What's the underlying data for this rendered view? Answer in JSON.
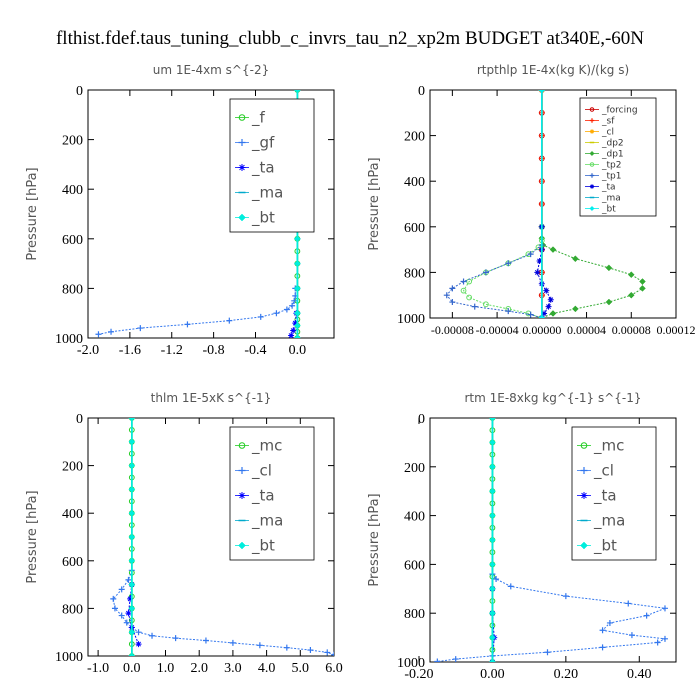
{
  "title": "flthist.fdef.taus_tuning_clubb_c_invrs_tau_n2_xp2m  BUDGET at340E,-60N",
  "chart_data": [
    {
      "type": "line",
      "title": "um   1E-4xm  s^{-2}",
      "ylabel": "Pressure [hPa]",
      "xlim": [
        -2.0,
        0.35
      ],
      "ylim": [
        1000,
        0
      ],
      "xticks": [
        "-2.0",
        "-1.6",
        "-1.2",
        "-0.8",
        "-0.4",
        "0.0"
      ],
      "xtick_values": [
        -2.0,
        -1.6,
        -1.2,
        -0.8,
        -0.4,
        0.0
      ],
      "yticks": [
        "0",
        "200",
        "400",
        "600",
        "800",
        "1000"
      ],
      "legend": [
        "_f",
        "_gf",
        "_ta",
        "_ma",
        "_bt"
      ],
      "legend_position": "top-right",
      "legend_small": false,
      "series": [
        {
          "name": "_f",
          "color": "#22cc22",
          "x": [
            0.0,
            0.0,
            0.0,
            0.0,
            0.0,
            0.0,
            0.0,
            0.0,
            0.0,
            0.0,
            0.0,
            0.0,
            0.0,
            0.0,
            0.0,
            0.0,
            0.0,
            0.0,
            0.0,
            0.0,
            0.0,
            0.0,
            0.0
          ],
          "y": [
            0,
            50,
            100,
            150,
            200,
            250,
            300,
            350,
            400,
            450,
            500,
            550,
            600,
            650,
            700,
            750,
            800,
            850,
            900,
            925,
            950,
            975,
            1000
          ]
        },
        {
          "name": "_gf",
          "color": "#3377ee",
          "x": [
            -0.02,
            -0.02,
            -0.03,
            -0.05,
            -0.1,
            -0.2,
            -0.35,
            -0.65,
            -1.05,
            -1.5,
            -1.78,
            -1.9
          ],
          "y": [
            800,
            830,
            850,
            870,
            885,
            900,
            915,
            930,
            945,
            960,
            975,
            985
          ]
        },
        {
          "name": "_ta",
          "color": "#0000ff",
          "x": [
            -0.01,
            -0.02,
            -0.04,
            -0.06
          ],
          "y": [
            900,
            940,
            970,
            990
          ]
        },
        {
          "name": "_ma",
          "color": "#00aacc",
          "x": [
            0.0,
            0.0,
            0.0,
            0.0,
            0.0,
            0.0,
            0.0,
            0.0,
            0.0,
            0.0,
            0.0
          ],
          "y": [
            0,
            100,
            200,
            300,
            400,
            500,
            600,
            700,
            800,
            900,
            1000
          ]
        },
        {
          "name": "_bt",
          "color": "#00eedd",
          "x": [
            0.0,
            0.0,
            0.0,
            0.0,
            0.0,
            0.0,
            0.0,
            0.0,
            0.0,
            0.0,
            0.0,
            0.0
          ],
          "y": [
            0,
            100,
            200,
            300,
            400,
            500,
            600,
            700,
            800,
            900,
            950,
            1000
          ]
        }
      ]
    },
    {
      "type": "line",
      "title": "rtpthlp   1E-4x(kg K)/(kg s)",
      "ylabel": "Pressure [hPa]",
      "xlim": [
        -0.0001,
        0.00012
      ],
      "ylim": [
        1000,
        0
      ],
      "xticks": [
        "-0.00008",
        "-0.00004",
        "0.00000",
        "0.00004",
        "0.00008",
        "0.00012"
      ],
      "xtick_values": [
        -8e-05,
        -4e-05,
        0.0,
        4e-05,
        8e-05,
        0.00012
      ],
      "yticks": [
        "0",
        "200",
        "400",
        "600",
        "800",
        "1000"
      ],
      "legend": [
        "_forcing",
        "_sf",
        "_cl",
        "_dp2",
        "_dp1",
        "_tp2",
        "_tp1",
        "_ta",
        "_ma",
        "_bt"
      ],
      "legend_position": "top-right",
      "legend_small": true,
      "series": [
        {
          "name": "_forcing",
          "color": "#cc0000",
          "x": [
            0.0,
            0.0,
            0.0,
            0.0,
            0.0,
            0.0,
            0.0,
            0.0,
            0.0,
            0.0,
            0.0
          ],
          "y": [
            0,
            100,
            200,
            300,
            400,
            500,
            600,
            700,
            800,
            900,
            1000
          ]
        },
        {
          "name": "_sf",
          "color": "#ff2200",
          "x": [
            0.0,
            0.0,
            0.0,
            0.0,
            0.0,
            0.0,
            0.0,
            0.0,
            0.0,
            0.0,
            0.0
          ],
          "y": [
            0,
            100,
            200,
            300,
            400,
            500,
            600,
            700,
            800,
            900,
            1000
          ]
        },
        {
          "name": "_cl",
          "color": "#ffaa00",
          "x": [
            0.0,
            0.0
          ],
          "y": [
            0,
            1000
          ]
        },
        {
          "name": "_dp2",
          "color": "#cccc00",
          "x": [
            0.0,
            0.0
          ],
          "y": [
            0,
            1000
          ]
        },
        {
          "name": "_dp1",
          "color": "#33aa33",
          "x": [
            0.0,
            0.0,
            1e-06,
            1e-05,
            3e-05,
            6e-05,
            8e-05,
            9e-05,
            9e-05,
            8e-05,
            6e-05,
            3e-05,
            1e-05,
            0.0
          ],
          "y": [
            600,
            650,
            680,
            700,
            740,
            780,
            810,
            840,
            870,
            900,
            930,
            960,
            980,
            1000
          ]
        },
        {
          "name": "_tp2",
          "color": "#66dd66",
          "x": [
            0.0,
            0.0,
            -3e-06,
            -1.2e-05,
            -3e-05,
            -5e-05,
            -6.5e-05,
            -7e-05,
            -6.5e-05,
            -5e-05,
            -3e-05,
            -1.2e-05,
            0.0
          ],
          "y": [
            600,
            660,
            690,
            720,
            760,
            800,
            840,
            880,
            910,
            940,
            960,
            980,
            1000
          ]
        },
        {
          "name": "_tp1",
          "color": "#3366cc",
          "x": [
            0.0,
            0.0,
            -1e-05,
            -3e-05,
            -5e-05,
            -7e-05,
            -8e-05,
            -8.5e-05,
            -8e-05,
            -6e-05,
            -3e-05,
            -1e-05,
            0.0
          ],
          "y": [
            600,
            680,
            720,
            760,
            800,
            840,
            870,
            900,
            930,
            950,
            970,
            985,
            1000
          ]
        },
        {
          "name": "_ta",
          "color": "#0000dd",
          "x": [
            0.0,
            0.0,
            -2e-06,
            -4e-06,
            0.0,
            4e-06,
            8e-06,
            6e-06,
            2e-06,
            0.0
          ],
          "y": [
            600,
            700,
            750,
            800,
            850,
            880,
            920,
            950,
            980,
            1000
          ]
        },
        {
          "name": "_ma",
          "color": "#00aacc",
          "x": [
            0.0,
            0.0
          ],
          "y": [
            0,
            1000
          ]
        },
        {
          "name": "_bt",
          "color": "#00eeee",
          "x": [
            0.0,
            0.0
          ],
          "y": [
            0,
            1000
          ]
        }
      ]
    },
    {
      "type": "line",
      "title": "thlm   1E-5xK  s^{-1}",
      "ylabel": "Pressure [hPa]",
      "xlim": [
        -1.3,
        6.0
      ],
      "ylim": [
        1000,
        0
      ],
      "xticks": [
        "-1.0",
        "0.0",
        "1.0",
        "2.0",
        "3.0",
        "4.0",
        "5.0",
        "6.0"
      ],
      "xtick_values": [
        -1.0,
        0.0,
        1.0,
        2.0,
        3.0,
        4.0,
        5.0,
        6.0
      ],
      "yticks": [
        "0",
        "200",
        "400",
        "600",
        "800",
        "1000"
      ],
      "legend": [
        "_mc",
        "_cl",
        "_ta",
        "_ma",
        "_bt"
      ],
      "legend_position": "top-right",
      "legend_small": false,
      "series": [
        {
          "name": "_mc",
          "color": "#22cc22",
          "x": [
            0.0,
            0.0,
            0.0,
            0.0,
            0.0,
            0.0,
            0.0,
            0.0,
            0.0,
            0.0,
            0.0,
            0.0,
            0.0,
            0.0,
            0.0,
            0.0,
            0.0,
            0.0,
            0.0,
            0.0,
            0.0
          ],
          "y": [
            0,
            50,
            100,
            150,
            200,
            250,
            300,
            350,
            400,
            450,
            500,
            550,
            600,
            650,
            700,
            750,
            800,
            850,
            900,
            950,
            1000
          ]
        },
        {
          "name": "_cl",
          "color": "#3377ee",
          "x": [
            0.0,
            -0.1,
            -0.3,
            -0.55,
            -0.5,
            -0.3,
            -0.15,
            0.0,
            0.2,
            0.6,
            1.3,
            2.2,
            3.0,
            3.8,
            4.6,
            5.3,
            5.8,
            6.0
          ],
          "y": [
            640,
            680,
            720,
            760,
            800,
            830,
            860,
            880,
            900,
            915,
            925,
            935,
            945,
            955,
            965,
            975,
            985,
            995
          ]
        },
        {
          "name": "_ta",
          "color": "#0000ff",
          "x": [
            0.0,
            -0.05,
            -0.1,
            0.0,
            0.2
          ],
          "y": [
            700,
            760,
            820,
            880,
            950
          ]
        },
        {
          "name": "_ma",
          "color": "#00aacc",
          "x": [
            0.0,
            0.0
          ],
          "y": [
            0,
            1000
          ]
        },
        {
          "name": "_bt",
          "color": "#00eedd",
          "x": [
            0.0,
            0.0,
            0.0,
            0.0,
            0.0,
            0.0,
            0.0,
            0.0,
            0.0,
            0.0,
            0.0
          ],
          "y": [
            0,
            100,
            200,
            300,
            400,
            500,
            600,
            700,
            800,
            900,
            1000
          ]
        }
      ]
    },
    {
      "type": "line",
      "title": "rtm   1E-8xkg  kg^{-1}  s^{-1}",
      "ylabel": "Pressure [hPa]",
      "xlim": [
        -0.17,
        0.5
      ],
      "ylim": [
        1000,
        0
      ],
      "xticks": [
        "-0.20",
        "0.00",
        "0.20",
        "0.40"
      ],
      "xtick_values": [
        -0.2,
        0.0,
        0.2,
        0.4
      ],
      "yticks": [
        "0",
        "200",
        "400",
        "600",
        "800",
        "1000"
      ],
      "legend": [
        "_mc",
        "_cl",
        "_ta",
        "_ma",
        "_bt"
      ],
      "legend_position": "top-right",
      "legend_small": false,
      "series": [
        {
          "name": "_mc",
          "color": "#22cc22",
          "x": [
            0.0,
            0.0,
            0.0,
            0.0,
            0.0,
            0.0,
            0.0,
            0.0,
            0.0,
            0.0,
            0.0,
            0.0,
            0.0,
            0.0,
            0.0,
            0.0,
            0.0,
            0.0,
            0.0,
            0.0,
            0.0
          ],
          "y": [
            0,
            50,
            100,
            150,
            200,
            250,
            300,
            350,
            400,
            450,
            500,
            550,
            600,
            650,
            700,
            750,
            800,
            850,
            900,
            950,
            1000
          ]
        },
        {
          "name": "_cl",
          "color": "#3377ee",
          "x": [
            0.0,
            0.01,
            0.05,
            0.2,
            0.37,
            0.47,
            0.42,
            0.32,
            0.3,
            0.38,
            0.47,
            0.45,
            0.3,
            0.15,
            0.0,
            -0.1,
            -0.15
          ],
          "y": [
            640,
            660,
            690,
            730,
            760,
            780,
            810,
            840,
            870,
            890,
            905,
            920,
            940,
            960,
            975,
            988,
            998
          ]
        },
        {
          "name": "_ta",
          "color": "#0000ff",
          "x": [
            0.0,
            0.0,
            0.005,
            0.0
          ],
          "y": [
            700,
            800,
            900,
            1000
          ]
        },
        {
          "name": "_ma",
          "color": "#00aacc",
          "x": [
            0.0,
            0.0
          ],
          "y": [
            0,
            1000
          ]
        },
        {
          "name": "_bt",
          "color": "#00eedd",
          "x": [
            0.0,
            0.0,
            0.0,
            0.0,
            0.0,
            0.0,
            0.0,
            0.0,
            0.0,
            0.0,
            0.0
          ],
          "y": [
            0,
            100,
            200,
            300,
            400,
            500,
            600,
            700,
            800,
            900,
            1000
          ]
        }
      ]
    }
  ]
}
